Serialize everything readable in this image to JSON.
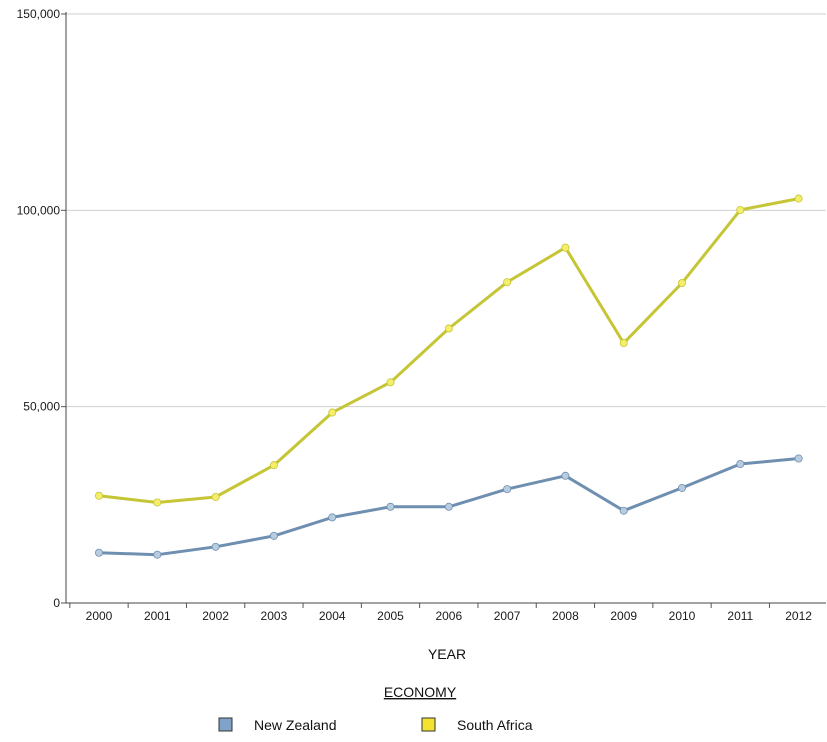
{
  "chart_data": {
    "type": "line",
    "title": "",
    "xlabel": "YEAR",
    "ylabel": "",
    "x": [
      "2000",
      "2001",
      "2002",
      "2003",
      "2004",
      "2005",
      "2006",
      "2007",
      "2008",
      "2009",
      "2010",
      "2011",
      "2012"
    ],
    "ylim": [
      0,
      150000
    ],
    "yticks": [
      0,
      50000,
      100000,
      150000
    ],
    "ytick_labels": [
      "0",
      "50,000",
      "100,000",
      "150,000"
    ],
    "grid": true,
    "legend": {
      "title": "ECONOMY",
      "placement": "bottom-center"
    },
    "series": [
      {
        "name": "New Zealand",
        "color": "#6f8fb0",
        "legend_color": "#7fa3cb",
        "marker_color": "#b8cce0",
        "values": [
          12800,
          12300,
          14300,
          17100,
          21800,
          24500,
          24500,
          29000,
          32400,
          23500,
          29300,
          35400,
          36800
        ]
      },
      {
        "name": "South Africa",
        "color": "#c5c535",
        "legend_color": "#f3e22f",
        "marker_color": "#f4ee6a",
        "values": [
          27300,
          25600,
          27000,
          35100,
          48500,
          56200,
          69900,
          81700,
          90500,
          66200,
          81500,
          100100,
          103000
        ]
      }
    ]
  }
}
